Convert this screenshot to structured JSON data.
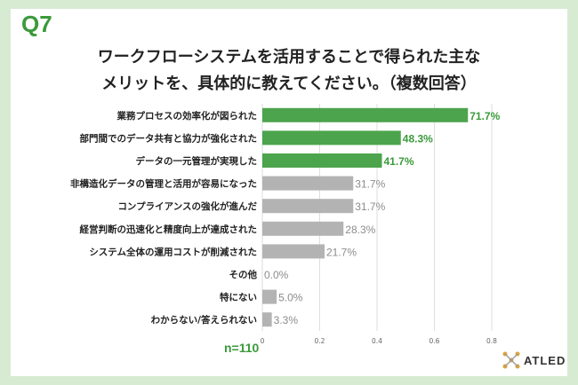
{
  "question_number": "Q7",
  "chart_data": {
    "type": "bar",
    "orientation": "horizontal",
    "title": "ワークフローシステムを活用することで得られた主なメリットを、具体的に教えてください。（複数回答）",
    "title_lines": [
      "ワークフローシステムを活用することで得られた主な",
      "メリットを、具体的に教えてください。（複数回答）"
    ],
    "categories": [
      "業務プロセスの効率化が図られた",
      "部門間でのデータ共有と協力が強化された",
      "データの一元管理が実現した",
      "非構造化データの管理と活用が容易になった",
      "コンプライアンスの強化が進んだ",
      "経営判断の迅速化と精度向上が達成された",
      "システム全体の運用コストが削減された",
      "その他",
      "特にない",
      "わからない/答えられない"
    ],
    "values": [
      0.717,
      0.483,
      0.417,
      0.317,
      0.317,
      0.283,
      0.217,
      0.0,
      0.05,
      0.033
    ],
    "value_labels": [
      "71.7%",
      "48.3%",
      "41.7%",
      "31.7%",
      "31.7%",
      "28.3%",
      "21.7%",
      "0.0%",
      "5.0%",
      "3.3%"
    ],
    "highlight_count": 3,
    "xlim": [
      0,
      0.8
    ],
    "x_ticks": [
      "0",
      "0.2",
      "0.4",
      "0.6",
      "0.8"
    ],
    "x_tick_values": [
      0,
      0.2,
      0.4,
      0.6,
      0.8
    ],
    "grid": true,
    "sample_size": "n=110",
    "colors": {
      "highlight": "#4ca44c",
      "other": "#b3b3b3",
      "highlight_label": "#3a9a3a",
      "other_label": "#8c8c8c"
    }
  },
  "brand": {
    "name": "ATLED",
    "icon": "atled-logo-icon"
  }
}
